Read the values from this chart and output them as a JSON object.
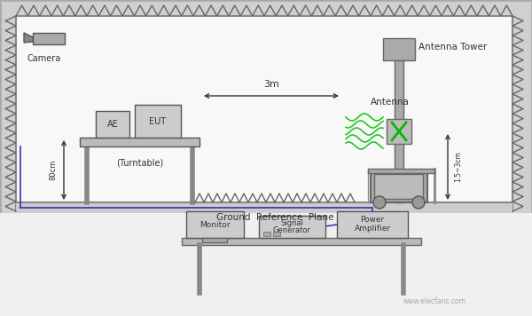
{
  "bg_color": "#d0d0d0",
  "room_bg": "#ffffff",
  "room_border": "#888888",
  "camera_label": "Camera",
  "antenna_label": "Antenna",
  "antenna_tower_label": "Antenna Tower",
  "ae_label": "AE",
  "eut_label": "EUT",
  "turntable_label": "(Turntable)",
  "ground_label": "Ground  Reference  Plane",
  "monitor_label": "Monitor",
  "signal_gen_label": "Signal\nGenerator",
  "power_amp_label": "Power\nAmplifier",
  "distance_label": "3m",
  "height_left_label": "80cm",
  "height_right_label": "1.5~3cm",
  "zigzag_color": "#666666",
  "device_color": "#cccccc",
  "device_border": "#666666",
  "antenna_green": "#00bb00",
  "text_color": "#333333",
  "watermark": "www.elecfans.com",
  "cable_color": "#3333aa"
}
